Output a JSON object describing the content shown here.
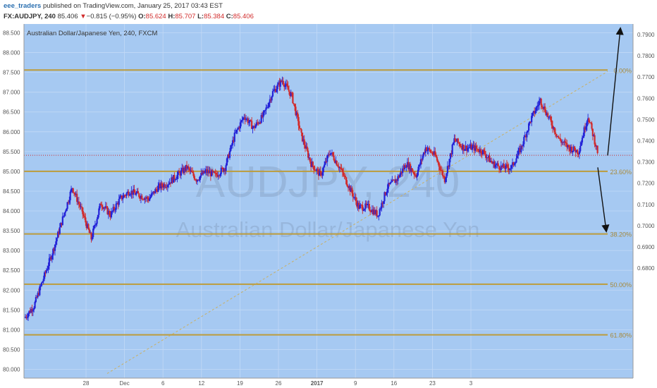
{
  "header": {
    "author": "eee_traders",
    "published_text": "published on TradingView.com, January 25, 2017 03:43 EST",
    "symbol": "FX:AUDJPY, 240",
    "last": "85.406",
    "change_arrow": "▼",
    "change": "−0.815 (−0.95%)",
    "o_label": "O:",
    "o_value": "85.624",
    "h_label": "H:",
    "h_value": "85.707",
    "l_label": "L:",
    "l_value": "85.384",
    "c_label": "C:",
    "c_value": "85.406"
  },
  "chart_data": {
    "type": "candlestick",
    "title": "Australian Dollar/Japanese Yen, 240, FXCM",
    "watermark_symbol": "AUDJPY, 240",
    "watermark_name": "Australian Dollar/Japanese Yen",
    "left_axis": {
      "min": 80.0,
      "max": 88.5,
      "ticks": [
        "88.500",
        "88.000",
        "87.500",
        "87.000",
        "86.500",
        "86.000",
        "85.500",
        "85.000",
        "84.500",
        "84.000",
        "83.500",
        "83.000",
        "82.500",
        "82.000",
        "81.500",
        "81.000",
        "80.500",
        "80.000"
      ]
    },
    "right_axis": {
      "ticks": [
        "0.7900",
        "0.7800",
        "0.7700",
        "0.7600",
        "0.7500",
        "0.7400",
        "0.7300",
        "0.7200",
        "0.7100",
        "0.7000",
        "0.6900",
        "0.6800"
      ]
    },
    "x_ticks": [
      "28",
      "Dec",
      "6",
      "12",
      "19",
      "26",
      "2017",
      "9",
      "16",
      "23",
      "3"
    ],
    "fib_levels": [
      {
        "label": "0.00%",
        "value": 87.56
      },
      {
        "label": "23.60%",
        "value": 85.0
      },
      {
        "label": "38.20%",
        "value": 83.42
      },
      {
        "label": "50.00%",
        "value": 82.15
      },
      {
        "label": "61.80%",
        "value": 80.87
      }
    ],
    "current_price": 85.406,
    "path_close": [
      81.3,
      81.6,
      82.3,
      83.0,
      83.8,
      84.6,
      84.0,
      83.3,
      84.2,
      83.9,
      84.3,
      84.5,
      84.4,
      84.3,
      84.6,
      84.7,
      84.9,
      85.1,
      84.8,
      85.0,
      84.9,
      85.1,
      85.9,
      86.4,
      86.1,
      86.4,
      87.0,
      87.3,
      86.9,
      85.9,
      85.2,
      84.9,
      85.5,
      85.1,
      84.6,
      84.1,
      84.1,
      83.9,
      84.6,
      84.8,
      85.2,
      84.9,
      85.6,
      85.4,
      84.8,
      85.8,
      85.6,
      85.6,
      85.5,
      85.2,
      85.1,
      85.1,
      85.6,
      86.3,
      86.8,
      86.3,
      85.8,
      85.6,
      85.5,
      86.4,
      85.5
    ],
    "projection_up_target": 88.6,
    "projection_down_target": 83.5,
    "colors": {
      "background": "#a6c9f2",
      "up": "#2323d8",
      "down": "#d12b2b",
      "fib": "#bc9c3c",
      "fib_label": "#a6893a",
      "header_author": "#2a6fb0"
    }
  }
}
